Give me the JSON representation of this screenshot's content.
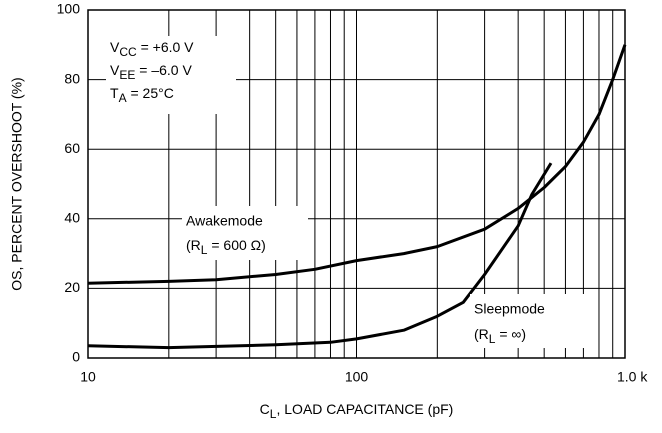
{
  "chart_data": {
    "type": "line",
    "x_label": {
      "main": "C",
      "sub": "L",
      "rest": ", LOAD CAPACITANCE (pF)"
    },
    "y_label": "OS, PERCENT OVERSHOOT (%)",
    "annotations": [
      {
        "main": "V",
        "sub": "CC",
        "rest": " = +6.0 V"
      },
      {
        "main": "V",
        "sub": "EE",
        "rest": " = –6.0 V"
      },
      {
        "main": "T",
        "sub": "A",
        "rest": " = 25°C"
      }
    ],
    "series": [
      {
        "name": "Awakemode",
        "note": {
          "main": "(R",
          "sub": "L",
          "rest": " = 600 Ω)"
        },
        "color": "#000000",
        "x": [
          10,
          20,
          30,
          50,
          70,
          100,
          150,
          200,
          300,
          400,
          500,
          600,
          700,
          800,
          900,
          1000
        ],
        "values": [
          21.5,
          22,
          22.5,
          24,
          25.5,
          28,
          30,
          32,
          37,
          43,
          49,
          55,
          62,
          70,
          80,
          90
        ]
      },
      {
        "name": "Sleepmode",
        "note": {
          "main": "(R",
          "sub": "L",
          "rest": " = ∞)"
        },
        "color": "#000000",
        "x": [
          10,
          20,
          50,
          80,
          100,
          150,
          200,
          250,
          300,
          400,
          450,
          530
        ],
        "values": [
          3.5,
          3,
          3.8,
          4.5,
          5.5,
          8,
          12,
          16,
          24,
          38,
          47,
          56
        ]
      }
    ],
    "xlog": true,
    "xlim": [
      10,
      1000
    ],
    "xticks": [
      10,
      100,
      {
        "value": 1000,
        "label": "1.0 k"
      }
    ],
    "xminor": [
      20,
      30,
      40,
      50,
      60,
      70,
      80,
      90,
      200,
      300,
      400,
      500,
      600,
      700,
      800,
      900
    ],
    "ylim": [
      0,
      100
    ],
    "yticks": [
      0,
      20,
      40,
      60,
      80,
      100
    ],
    "grid": true
  }
}
